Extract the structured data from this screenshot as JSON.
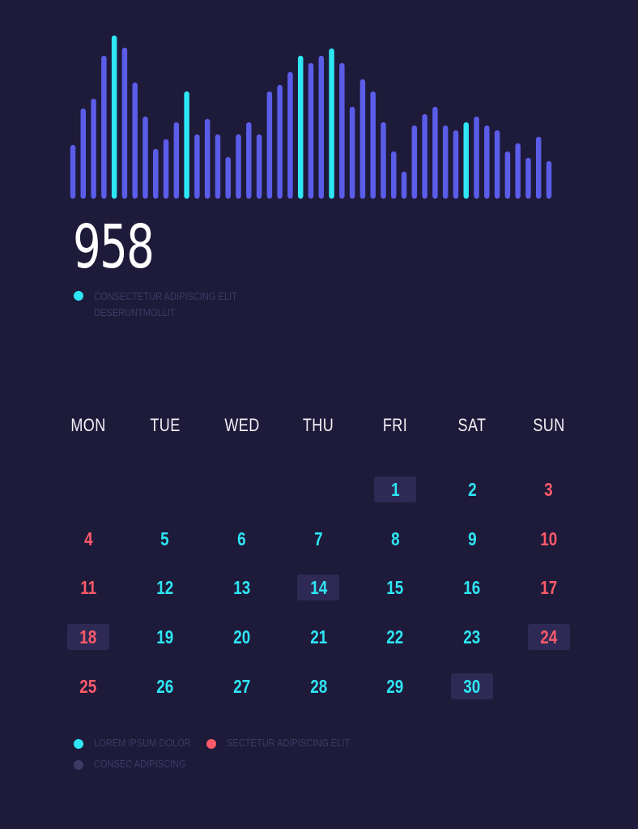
{
  "chart_data": {
    "type": "bar",
    "values": [
      60,
      105,
      117,
      170,
      195,
      180,
      137,
      95,
      55,
      67,
      88,
      126,
      73,
      92,
      73,
      45,
      73,
      88,
      73,
      126,
      134,
      150,
      170,
      161,
      170,
      179,
      161,
      107,
      141,
      126,
      88,
      52,
      27,
      84,
      98,
      107,
      84,
      78,
      88,
      95,
      84,
      78,
      52,
      62,
      44,
      70,
      40
    ],
    "highlight": [
      4,
      11,
      22,
      25,
      38
    ],
    "colors": {
      "bar": "#5b5ce8",
      "highlight": "#2ee6f4"
    }
  },
  "summary": {
    "value": "958",
    "caption_line1": "CONSECTETUR ADIPISCING ELIT",
    "caption_line2": "DESERUNTMOLLIT",
    "dot_color": "#2ee6f4"
  },
  "calendar": {
    "weekdays": [
      "MON",
      "TUE",
      "WED",
      "THU",
      "FRI",
      "SAT",
      "SUN"
    ],
    "days": [
      {
        "label": "1",
        "color": "cyan",
        "highlight": true,
        "col": 4,
        "row": 0
      },
      {
        "label": "2",
        "color": "cyan",
        "highlight": false,
        "col": 5,
        "row": 0
      },
      {
        "label": "3",
        "color": "red",
        "highlight": false,
        "col": 6,
        "row": 0
      },
      {
        "label": "4",
        "color": "red",
        "highlight": false,
        "col": 0,
        "row": 1
      },
      {
        "label": "5",
        "color": "cyan",
        "highlight": false,
        "col": 1,
        "row": 1
      },
      {
        "label": "6",
        "color": "cyan",
        "highlight": false,
        "col": 2,
        "row": 1
      },
      {
        "label": "7",
        "color": "cyan",
        "highlight": false,
        "col": 3,
        "row": 1
      },
      {
        "label": "8",
        "color": "cyan",
        "highlight": false,
        "col": 4,
        "row": 1
      },
      {
        "label": "9",
        "color": "cyan",
        "highlight": false,
        "col": 5,
        "row": 1
      },
      {
        "label": "10",
        "color": "red",
        "highlight": false,
        "col": 6,
        "row": 1
      },
      {
        "label": "11",
        "color": "red",
        "highlight": false,
        "col": 0,
        "row": 2
      },
      {
        "label": "12",
        "color": "cyan",
        "highlight": false,
        "col": 1,
        "row": 2
      },
      {
        "label": "13",
        "color": "cyan",
        "highlight": false,
        "col": 2,
        "row": 2
      },
      {
        "label": "14",
        "color": "cyan",
        "highlight": true,
        "col": 3,
        "row": 2
      },
      {
        "label": "15",
        "color": "cyan",
        "highlight": false,
        "col": 4,
        "row": 2
      },
      {
        "label": "16",
        "color": "cyan",
        "highlight": false,
        "col": 5,
        "row": 2
      },
      {
        "label": "17",
        "color": "red",
        "highlight": false,
        "col": 6,
        "row": 2
      },
      {
        "label": "18",
        "color": "red",
        "highlight": true,
        "col": 0,
        "row": 3
      },
      {
        "label": "19",
        "color": "cyan",
        "highlight": false,
        "col": 1,
        "row": 3
      },
      {
        "label": "20",
        "color": "cyan",
        "highlight": false,
        "col": 2,
        "row": 3
      },
      {
        "label": "21",
        "color": "cyan",
        "highlight": false,
        "col": 3,
        "row": 3
      },
      {
        "label": "22",
        "color": "cyan",
        "highlight": false,
        "col": 4,
        "row": 3
      },
      {
        "label": "23",
        "color": "cyan",
        "highlight": false,
        "col": 5,
        "row": 3
      },
      {
        "label": "24",
        "color": "red",
        "highlight": true,
        "col": 6,
        "row": 3
      },
      {
        "label": "25",
        "color": "red",
        "highlight": false,
        "col": 0,
        "row": 4
      },
      {
        "label": "26",
        "color": "cyan",
        "highlight": false,
        "col": 1,
        "row": 4
      },
      {
        "label": "27",
        "color": "cyan",
        "highlight": false,
        "col": 2,
        "row": 4
      },
      {
        "label": "28",
        "color": "cyan",
        "highlight": false,
        "col": 3,
        "row": 4
      },
      {
        "label": "29",
        "color": "cyan",
        "highlight": false,
        "col": 4,
        "row": 4
      },
      {
        "label": "30",
        "color": "cyan",
        "highlight": true,
        "col": 5,
        "row": 4
      }
    ]
  },
  "legend": [
    {
      "label": "LOREM IPSUM DOLOR",
      "color": "#2ee6f4"
    },
    {
      "label": "SECTETUR ADIPISCING ELIT",
      "color": "#ff5a6a"
    },
    {
      "label": "CONSEC ADIPISCING",
      "color": "#3d3a66"
    }
  ]
}
